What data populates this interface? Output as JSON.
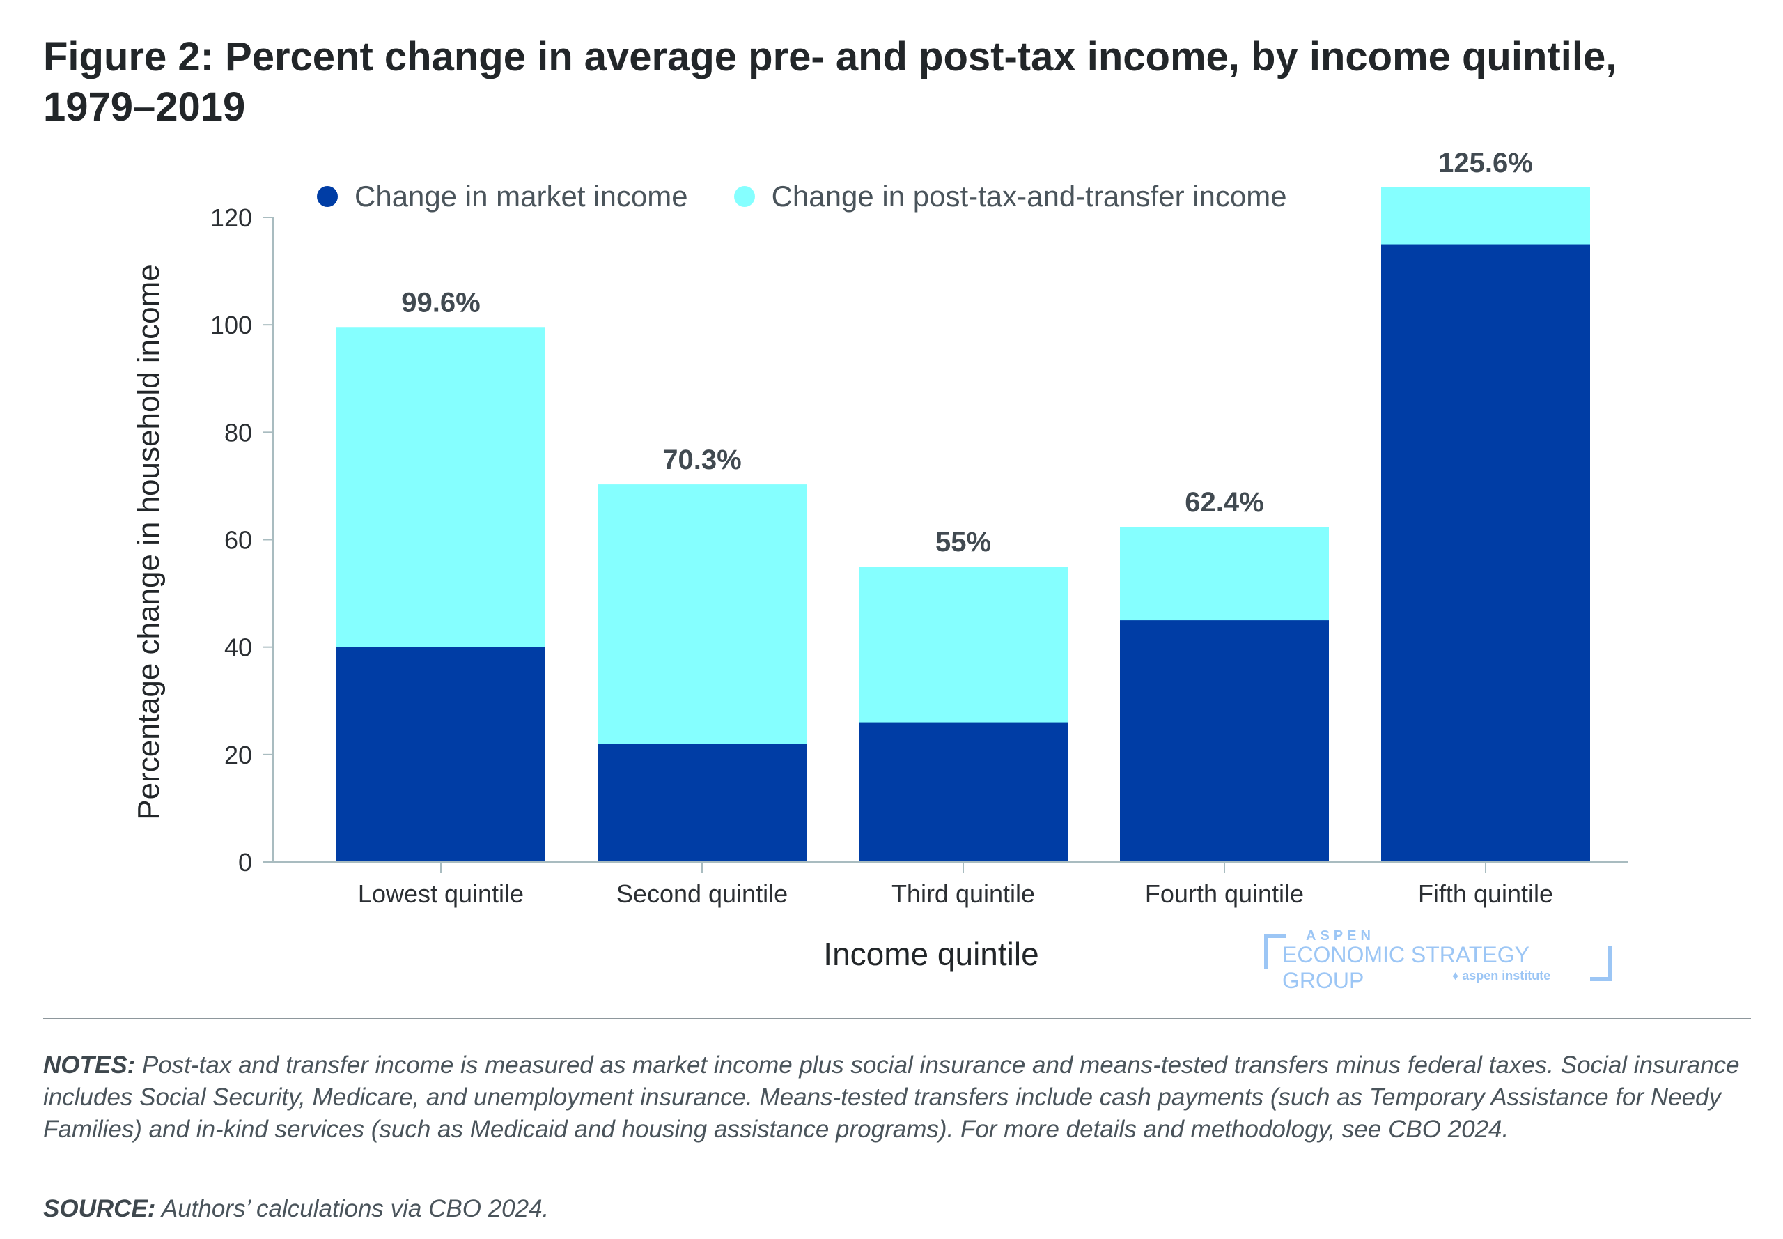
{
  "figure": {
    "title_line1": "Figure 2: Percent change in average pre- and post-tax income, by income quintile,",
    "title_line2": "1979–2019"
  },
  "legend": {
    "items": [
      {
        "label": "Change in market income",
        "color": "#003da5"
      },
      {
        "label": "Change in post-tax-and-transfer income",
        "color": "#85ffff"
      }
    ]
  },
  "logo": {
    "top": "ASPEN",
    "main": "ECONOMIC STRATEGY GROUP",
    "sub": "aspen institute",
    "color": "#9cc6f5"
  },
  "notes": {
    "notes_label": "NOTES:",
    "notes_text": "Post-tax and transfer income is measured as market income plus social insurance and means-tested transfers minus federal taxes. Social insurance includes Social Security, Medicare, and unemployment insurance. Means-tested transfers include cash payments (such as Temporary Assistance for Needy Families) and in-kind services (such as Medicaid and housing assistance programs). For more details and methodology, see CBO 2024.",
    "source_label": "SOURCE:",
    "source_text": "Authors’ calculations via CBO 2024."
  },
  "chart_data": {
    "type": "bar",
    "stacked": false,
    "overlay": true,
    "title": "Figure 2: Percent change in average pre- and post-tax income, by income quintile, 1979–2019",
    "xlabel": "Income quintile",
    "ylabel": "Percentage change in household income",
    "categories": [
      "Lowest quintile",
      "Second quintile",
      "Third quintile",
      "Fourth quintile",
      "Fifth quintile"
    ],
    "series": [
      {
        "name": "Change in post-tax-and-transfer income",
        "color": "#85ffff",
        "values": [
          99.6,
          70.3,
          55,
          62.4,
          125.6
        ]
      },
      {
        "name": "Change in market income",
        "color": "#003da5",
        "values": [
          40,
          22,
          26,
          45,
          115
        ]
      }
    ],
    "data_labels": [
      "99.6%",
      "70.3%",
      "55%",
      "62.4%",
      "125.6%"
    ],
    "ylim": [
      0,
      120
    ],
    "yticks": [
      0,
      20,
      40,
      60,
      80,
      100,
      120
    ],
    "grid": false,
    "legend_position": "top"
  }
}
